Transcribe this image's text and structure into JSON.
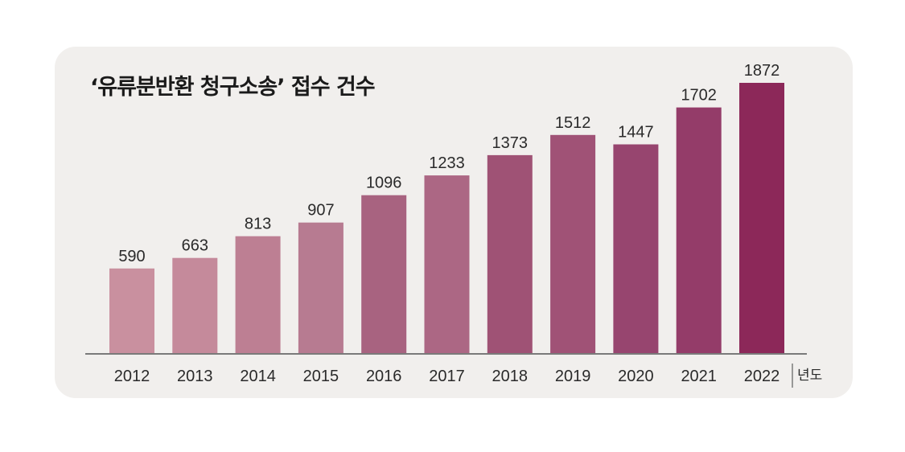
{
  "chart_data": {
    "type": "bar",
    "title": "‘유류분반환 청구소송’ 접수 건수",
    "categories": [
      "2012",
      "2013",
      "2014",
      "2015",
      "2016",
      "2017",
      "2018",
      "2019",
      "2020",
      "2021",
      "2022"
    ],
    "values": [
      590,
      663,
      813,
      907,
      1096,
      1233,
      1373,
      1512,
      1447,
      1702,
      1872
    ],
    "xlabel": "년도",
    "ylabel": "",
    "ylim": [
      0,
      2000
    ],
    "grid": false,
    "legend": "none",
    "colors": [
      "#c9909f",
      "#c58a9b",
      "#bd7f93",
      "#b77b91",
      "#a86380",
      "#ac6784",
      "#9f5275",
      "#a05276",
      "#97456f",
      "#943c69",
      "#8c2859"
    ]
  }
}
